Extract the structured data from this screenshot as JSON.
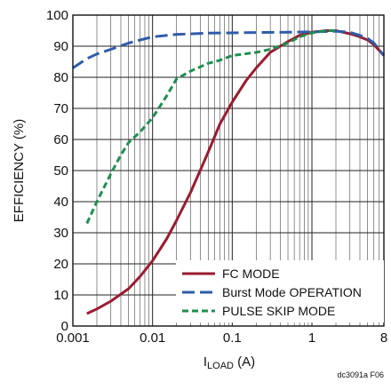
{
  "chart_data": {
    "type": "line",
    "x_scale": "log",
    "xlim": [
      0.001,
      8
    ],
    "ylim": [
      0,
      100
    ],
    "xlabel_main": "I",
    "xlabel_sub": "LOAD",
    "xlabel_unit": " (A)",
    "ylabel": "EFFICIENCY (%)",
    "x_ticks": [
      {
        "value": 0.001,
        "label": "0.001"
      },
      {
        "value": 0.01,
        "label": "0.01"
      },
      {
        "value": 0.1,
        "label": "0.1"
      },
      {
        "value": 1,
        "label": "1"
      },
      {
        "value": 8,
        "label": "8"
      }
    ],
    "y_ticks": [
      0,
      10,
      20,
      30,
      40,
      50,
      60,
      70,
      80,
      90,
      100
    ],
    "grid": true,
    "legend_position": "bottom-right",
    "figure_code": "dc3091a F06",
    "series": [
      {
        "name": "FC MODE",
        "color": "#9b1b30",
        "dash": "solid",
        "x": [
          0.0015,
          0.002,
          0.003,
          0.005,
          0.007,
          0.01,
          0.015,
          0.02,
          0.03,
          0.05,
          0.07,
          0.1,
          0.15,
          0.2,
          0.3,
          0.5,
          0.7,
          1,
          1.5,
          2,
          3,
          4,
          5,
          6,
          8
        ],
        "y": [
          4,
          5.5,
          8,
          12,
          16,
          21,
          28,
          34,
          43,
          56,
          65,
          72,
          79,
          83,
          88,
          91.5,
          93.5,
          94.5,
          95,
          95,
          94,
          93,
          92,
          90.5,
          87
        ]
      },
      {
        "name": "Burst Mode OPERATION",
        "color": "#2e5ca8",
        "dash": "long",
        "x": [
          0.001,
          0.0015,
          0.002,
          0.003,
          0.005,
          0.007,
          0.01,
          0.02,
          0.05,
          0.1,
          0.2,
          0.5,
          1,
          1.5,
          2,
          3,
          4,
          5,
          6,
          8
        ],
        "y": [
          83,
          86,
          87.5,
          89,
          91,
          92,
          93,
          93.8,
          94.2,
          94.3,
          94.4,
          94.5,
          94.6,
          94.7,
          94.8,
          94.5,
          93.5,
          92.5,
          91,
          87
        ]
      },
      {
        "name": "PULSE SKIP MODE",
        "color": "#1f8f4f",
        "dash": "short",
        "x": [
          0.0015,
          0.002,
          0.003,
          0.004,
          0.005,
          0.007,
          0.01,
          0.015,
          0.02,
          0.03,
          0.05,
          0.07,
          0.1,
          0.2,
          0.3,
          0.5,
          0.7,
          1,
          1.5,
          2
        ],
        "y": [
          33,
          40,
          49,
          55,
          59,
          62.5,
          67,
          74,
          79.5,
          82,
          84.5,
          85.5,
          87,
          88,
          89,
          91,
          93,
          94.3,
          95,
          95
        ]
      }
    ]
  }
}
